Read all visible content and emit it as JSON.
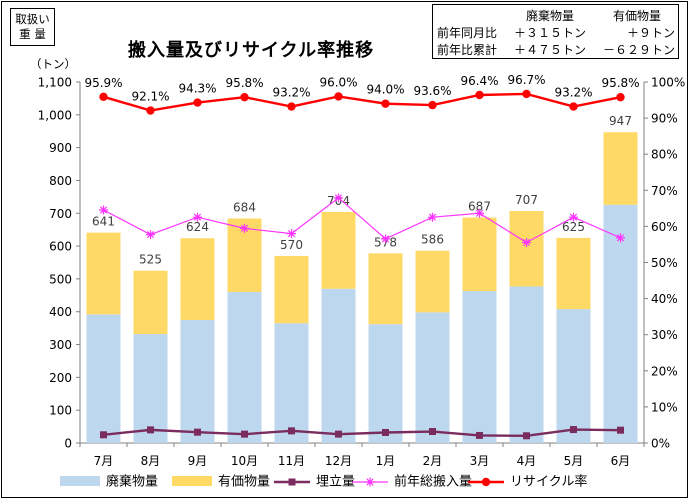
{
  "unit_box": {
    "line1": "取扱い",
    "line2": "重 量"
  },
  "summary": {
    "headers": [
      "廃棄物量",
      "有価物量"
    ],
    "rows": [
      {
        "label": "前年同月比",
        "waste": "＋３１５トン",
        "valuable": "＋９トン"
      },
      {
        "label": "前年比累計",
        "waste": "＋４７５トン",
        "valuable": "－６２９トン"
      }
    ]
  },
  "chart_data": {
    "type": "bar",
    "title": "搬入量及びリサイクル率推移",
    "ylabel_left": "（トン）",
    "categories": [
      "7月",
      "8月",
      "9月",
      "10月",
      "11月",
      "12月",
      "1月",
      "2月",
      "3月",
      "4月",
      "5月",
      "6月"
    ],
    "ylim_left": [
      0,
      1100
    ],
    "yticks_left": [
      0,
      100,
      200,
      300,
      400,
      500,
      600,
      700,
      800,
      900,
      1000,
      1100
    ],
    "ytick_labels_left": [
      "0",
      "100",
      "200",
      "300",
      "400",
      "500",
      "600",
      "700",
      "800",
      "900",
      "1,000",
      "1,100"
    ],
    "ylim_right": [
      0,
      100
    ],
    "yticks_right": [
      0,
      10,
      20,
      30,
      40,
      50,
      60,
      70,
      80,
      90,
      100
    ],
    "ytick_labels_right": [
      "0%",
      "10%",
      "20%",
      "30%",
      "40%",
      "50%",
      "60%",
      "70%",
      "80%",
      "90%",
      "100%"
    ],
    "stacked_series": [
      {
        "name": "廃棄物量",
        "color": "#bdd7ee",
        "values": [
          392,
          332,
          375,
          460,
          365,
          470,
          362,
          398,
          463,
          477,
          408,
          726
        ]
      },
      {
        "name": "有価物量",
        "color": "#ffd966",
        "values": [
          249,
          193,
          249,
          224,
          205,
          234,
          216,
          188,
          224,
          230,
          217,
          221
        ]
      }
    ],
    "total_labels": [
      "641",
      "525",
      "624",
      "684",
      "570",
      "704",
      "578",
      "586",
      "687",
      "707",
      "625",
      "947"
    ],
    "line_series": [
      {
        "name": "埋立量",
        "color": "#7b2c5e",
        "marker": "square",
        "axis": "left",
        "values": [
          25,
          40,
          33,
          27,
          37,
          27,
          32,
          35,
          23,
          22,
          41,
          39
        ]
      },
      {
        "name": "前年総搬入量",
        "color": "#ff33ff",
        "marker": "star",
        "axis": "left",
        "values": [
          710,
          635,
          688,
          654,
          638,
          747,
          622,
          688,
          700,
          611,
          688,
          625
        ]
      },
      {
        "name": "リサイクル率",
        "color": "#ff0000",
        "marker": "circle",
        "axis": "right",
        "values": [
          95.9,
          92.1,
          94.3,
          95.8,
          93.2,
          96.0,
          94.0,
          93.6,
          96.4,
          96.7,
          93.2,
          95.8
        ],
        "labels": [
          "95.9%",
          "92.1%",
          "94.3%",
          "95.8%",
          "93.2%",
          "96.0%",
          "94.0%",
          "93.6%",
          "96.4%",
          "96.7%",
          "93.2%",
          "95.8%"
        ]
      }
    ],
    "legend": [
      "廃棄物量",
      "有価物量",
      "埋立量",
      "前年総搬入量",
      "リサイクル率"
    ],
    "legend_position": "bottom",
    "grid": false
  }
}
